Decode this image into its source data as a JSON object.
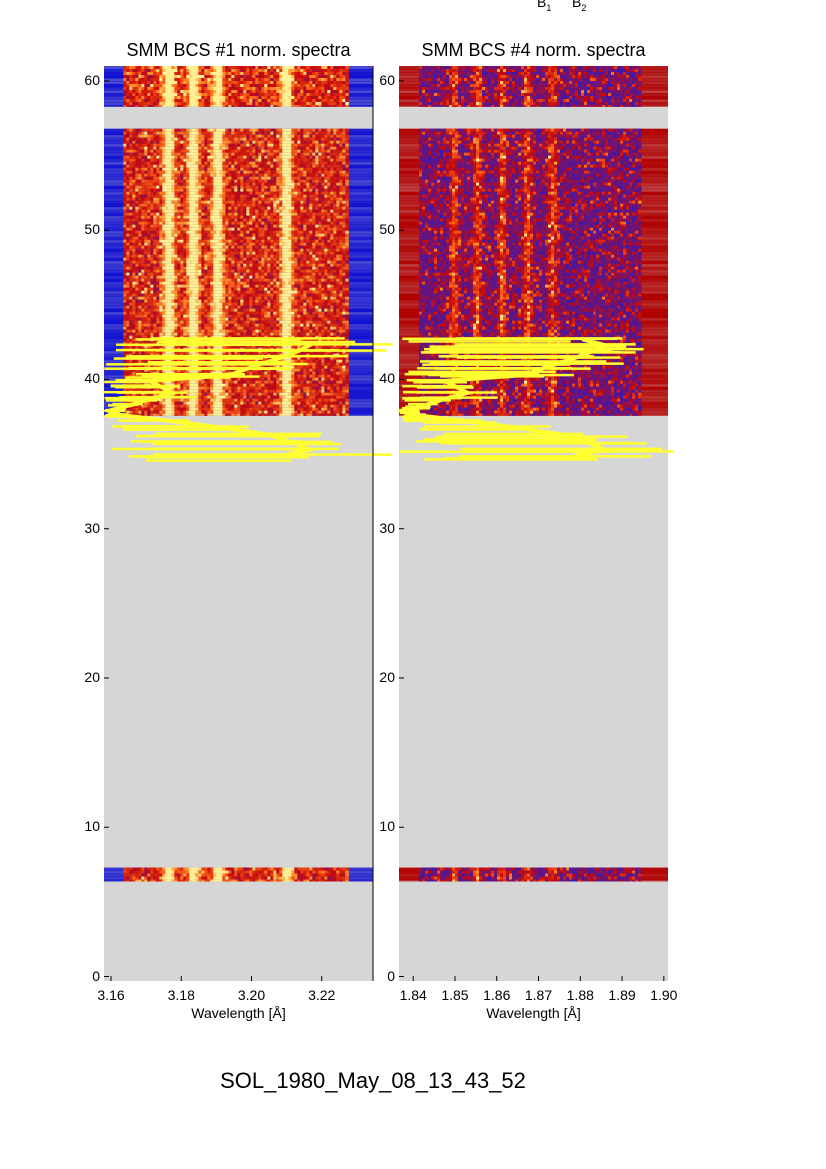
{
  "header_labels": {
    "b1": "B",
    "b1_sub": "1",
    "b2": "B",
    "b2_sub": "2"
  },
  "footer_title": "SOL_1980_May_08_13_43_52",
  "chart_data": [
    {
      "type": "heatmap",
      "title": "SMM BCS #1 norm. spectra",
      "xlabel": "Wavelength [Å]",
      "ylabel": "",
      "xlim": [
        3.158,
        3.2346
      ],
      "ylim": [
        -0.3,
        61
      ],
      "xticks": [
        "3.16",
        "3.18",
        "3.20",
        "3.22"
      ],
      "xtick_values": [
        3.16,
        3.18,
        3.2,
        3.22
      ],
      "yticks": [
        "0",
        "10",
        "20",
        "30",
        "40",
        "50",
        "60"
      ],
      "ytick_values": [
        0,
        10,
        20,
        30,
        40,
        50,
        60
      ],
      "data_bands": [
        [
          58.3,
          61
        ],
        [
          37.6,
          56.8
        ],
        [
          6.4,
          7.3
        ]
      ],
      "spectrum_range": [
        3.1635,
        3.227
      ],
      "line_centers": [
        3.176,
        3.183,
        3.19,
        3.2096
      ],
      "edge_color": "#1010d0",
      "no_data_color": "#d6d6d6"
    },
    {
      "type": "heatmap",
      "title": "SMM BCS #4 norm. spectra",
      "xlabel": "Wavelength [Å]",
      "ylabel": "",
      "xlim": [
        1.8366,
        1.901
      ],
      "ylim": [
        -0.3,
        61
      ],
      "xticks": [
        "1.84",
        "1.85",
        "1.86",
        "1.87",
        "1.88",
        "1.89",
        "1.90"
      ],
      "xtick_values": [
        1.84,
        1.85,
        1.86,
        1.87,
        1.88,
        1.89,
        1.9
      ],
      "yticks": [
        "0",
        "10",
        "20",
        "30",
        "40",
        "50",
        "60"
      ],
      "ytick_values": [
        0,
        10,
        20,
        30,
        40,
        50,
        60
      ],
      "data_bands": [
        [
          58.3,
          61
        ],
        [
          37.6,
          56.8
        ],
        [
          6.4,
          7.3
        ]
      ],
      "spectrum_range": [
        1.8414,
        1.8945
      ],
      "line_centers": [
        1.8495,
        1.855,
        1.861,
        1.867,
        1.873
      ],
      "edge_color": "#b00000",
      "no_data_color": "#d6d6d6"
    }
  ],
  "light_curve": {
    "color": "#ffff30",
    "t": [
      34.8,
      35.3,
      35.8,
      36.3,
      36.8,
      37.2,
      37.6,
      37.9,
      38.3,
      38.7,
      39.1,
      39.5,
      39.9,
      40.3,
      40.7,
      41.1,
      41.5,
      41.9,
      42.3,
      42.7
    ],
    "value": [
      0.75,
      0.9,
      0.82,
      0.72,
      0.5,
      0.3,
      0.08,
      0.02,
      0.12,
      0.2,
      0.3,
      0.25,
      0.2,
      0.55,
      0.62,
      0.7,
      0.78,
      0.85,
      0.9,
      0.8
    ]
  }
}
